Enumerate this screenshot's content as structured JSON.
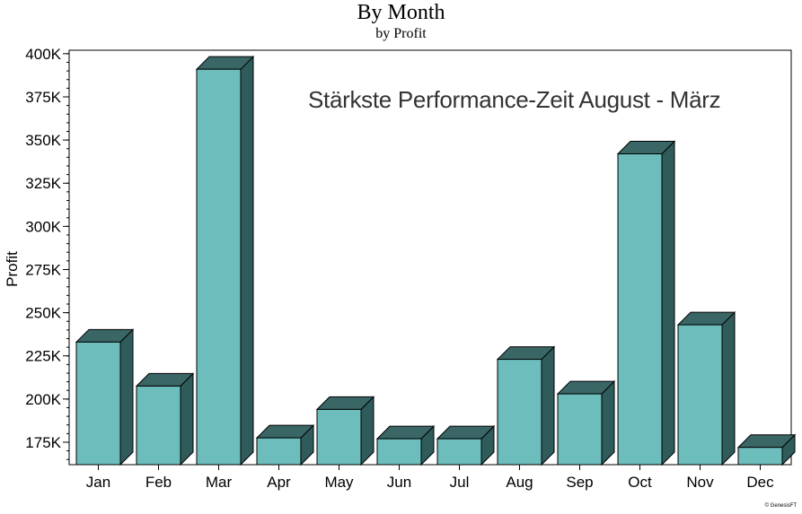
{
  "chart_data": {
    "type": "bar",
    "title": "By Month",
    "subtitle": "by Profit",
    "ylabel": "Profit",
    "xlabel": "",
    "annotation": "Stärkste Performance-Zeit August  - März",
    "copyright": "© GenesisFT",
    "categories": [
      "Jan",
      "Feb",
      "Mar",
      "Apr",
      "May",
      "Jun",
      "Jul",
      "Aug",
      "Sep",
      "Oct",
      "Nov",
      "Dec"
    ],
    "values": [
      233000,
      207500,
      391000,
      177500,
      194000,
      177000,
      177000,
      223000,
      203000,
      342000,
      243000,
      172000
    ],
    "ylim": [
      162000,
      402000
    ],
    "yticks": [
      175000,
      200000,
      225000,
      250000,
      275000,
      300000,
      325000,
      350000,
      375000,
      400000
    ],
    "ytick_labels": [
      "175K",
      "200K",
      "225K",
      "250K",
      "275K",
      "300K",
      "325K",
      "350K",
      "375K",
      "400K"
    ],
    "grid": false,
    "legend": "none",
    "colors": {
      "bar_front": "#6dbdbd",
      "bar_side": "#2f5b5b",
      "bar_top": "#3a6666",
      "outline": "#000000"
    }
  }
}
